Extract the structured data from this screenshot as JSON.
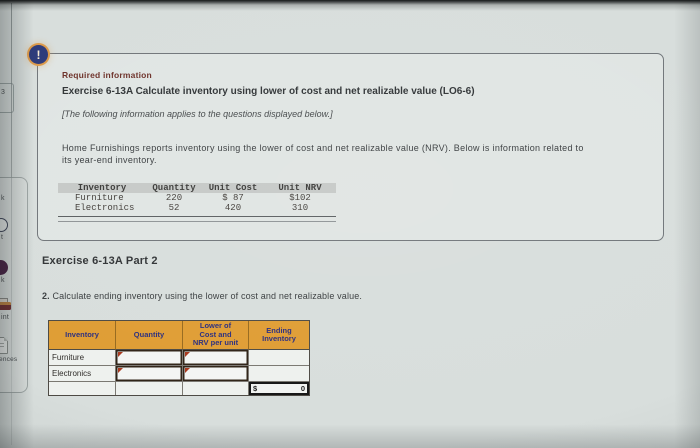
{
  "sidebar": {
    "fragments": [
      {
        "label": "3"
      },
      {
        "label": "k"
      },
      {
        "icon": "circle-outline-icon",
        "label": "t"
      },
      {
        "icon": "filled-circle-icon",
        "label": "k"
      },
      {
        "icon": "printer-icon",
        "label": "int"
      },
      {
        "icon": "document-icon",
        "label": "ences"
      }
    ]
  },
  "info_panel": {
    "badge": "!",
    "kicker": "Required information",
    "title": "Exercise 6-13A Calculate inventory using lower of cost and net realizable value (LO6-6)",
    "note": "[The following information applies to the questions displayed below.]",
    "body_line1": "Home Furnishings reports inventory using the lower of cost and net realizable value (NRV). Below is information related to",
    "body_line2": "its year-end inventory.",
    "inventory_table": {
      "headers": [
        "Inventory",
        "Quantity",
        "Unit Cost",
        "Unit NRV"
      ],
      "rows": [
        {
          "name": "Furniture",
          "quantity": "220",
          "unit_cost": "$ 87",
          "unit_nrv": "$102"
        },
        {
          "name": "Electronics",
          "quantity": "52",
          "unit_cost": "420",
          "unit_nrv": "310"
        }
      ]
    }
  },
  "part2": {
    "heading": "Exercise 6-13A Part 2",
    "instruction_number": "2.",
    "instruction_text": "Calculate ending inventory using the lower of cost and net realizable value.",
    "table": {
      "headers": [
        "Inventory",
        "Quantity",
        "Lower of Cost and NRV per unit",
        "Ending Inventory"
      ],
      "row_labels": [
        "Furniture",
        "Electronics"
      ],
      "total_currency_symbol": "$",
      "total_value": "0"
    }
  },
  "colors": {
    "page_bg": "#d8dedc",
    "panel_border": "#71767a",
    "kicker_text": "#6d3129",
    "badge_bg": "#2d3a7a",
    "badge_ring": "#dd9a4a",
    "t1_header_bg": "#c6c9c7",
    "p2_header_bg": "#df9d34",
    "p2_header_text": "#2c2f7e",
    "input_border": "#2f2317",
    "input_marker": "#a8381d"
  }
}
